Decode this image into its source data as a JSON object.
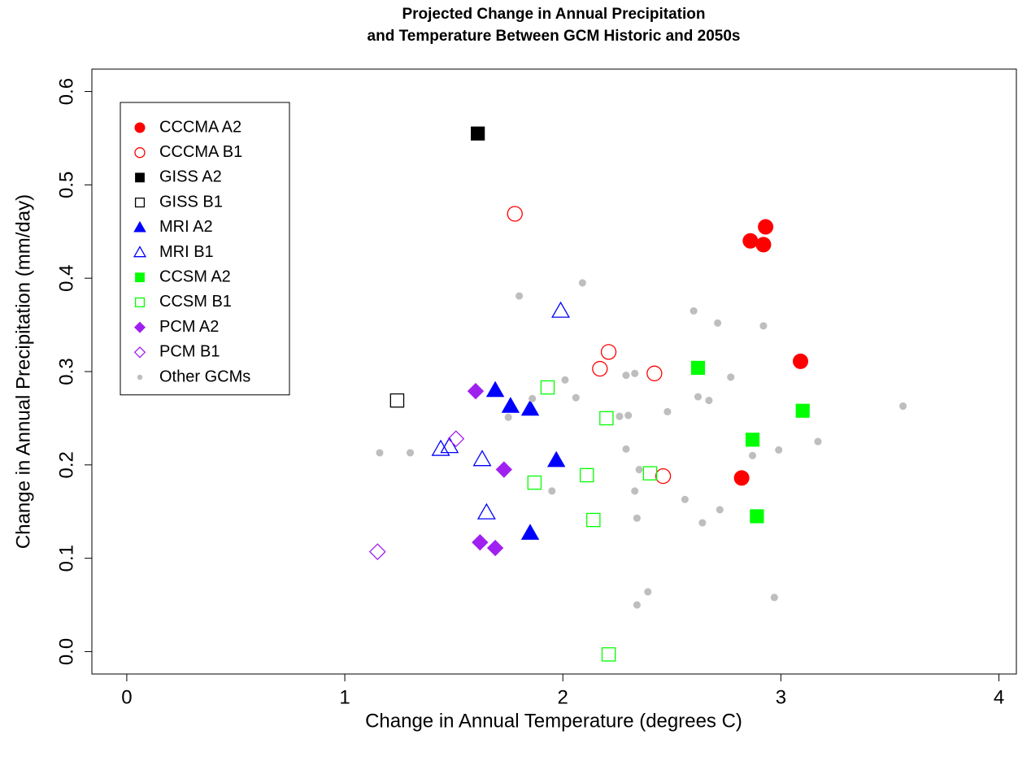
{
  "chart_data": {
    "type": "scatter",
    "title": [
      "Projected Change in Annual Precipitation",
      "and Temperature Between GCM Historic and 2050s"
    ],
    "x_label": "Change in Annual Temperature (degrees C)",
    "y_label": "Change in Annual Precipitation (mm/day)",
    "xlim": [
      -0.16,
      4.08
    ],
    "ylim": [
      -0.024,
      0.624
    ],
    "xticks": [
      0,
      1,
      2,
      3,
      4
    ],
    "yticks": [
      {
        "value": 0,
        "label": "0.0"
      },
      0.1,
      0.2,
      0.3,
      0.4,
      0.5,
      0.6
    ],
    "legend": "top-left",
    "series": [
      {
        "name": "CCCMA A2",
        "color": "#ff0000",
        "marker": "circle",
        "filled": true,
        "x": [
          2.86,
          2.93,
          2.92,
          3.09,
          2.82
        ],
        "values": [
          0.44,
          0.455,
          0.436,
          0.311,
          0.186
        ]
      },
      {
        "name": "CCCMA B1",
        "color": "#ff0000",
        "marker": "circle",
        "filled": false,
        "x": [
          1.78,
          2.21,
          2.17,
          2.42,
          2.46
        ],
        "values": [
          0.469,
          0.321,
          0.303,
          0.298,
          0.188
        ]
      },
      {
        "name": "GISS A2",
        "color": "#000000",
        "marker": "square",
        "filled": true,
        "x": [
          1.61
        ],
        "values": [
          0.555
        ]
      },
      {
        "name": "GISS B1",
        "color": "#000000",
        "marker": "square",
        "filled": false,
        "x": [
          1.24
        ],
        "values": [
          0.269
        ]
      },
      {
        "name": "MRI A2",
        "color": "#0000ff",
        "marker": "triangle",
        "filled": true,
        "x": [
          1.69,
          1.76,
          1.85,
          1.97,
          1.85
        ],
        "values": [
          0.28,
          0.263,
          0.26,
          0.205,
          0.127
        ]
      },
      {
        "name": "MRI B1",
        "color": "#0000ff",
        "marker": "triangle",
        "filled": false,
        "x": [
          1.99,
          1.44,
          1.48,
          1.63,
          1.65
        ],
        "values": [
          0.365,
          0.217,
          0.22,
          0.206,
          0.149
        ]
      },
      {
        "name": "CCSM A2",
        "color": "#00ff00",
        "marker": "square",
        "filled": true,
        "x": [
          2.62,
          3.1,
          2.87,
          2.89
        ],
        "values": [
          0.304,
          0.258,
          0.227,
          0.145
        ]
      },
      {
        "name": "CCSM B1",
        "color": "#00ff00",
        "marker": "square",
        "filled": false,
        "x": [
          1.93,
          2.2,
          2.11,
          2.4,
          1.87,
          2.14,
          2.21
        ],
        "values": [
          0.283,
          0.25,
          0.189,
          0.191,
          0.181,
          0.141,
          -0.003
        ]
      },
      {
        "name": "PCM A2",
        "color": "#a020f0",
        "marker": "diamond",
        "filled": true,
        "x": [
          1.6,
          1.73,
          1.62,
          1.69
        ],
        "values": [
          0.279,
          0.195,
          0.117,
          0.111
        ]
      },
      {
        "name": "PCM B1",
        "color": "#a020f0",
        "marker": "diamond",
        "filled": false,
        "x": [
          1.51,
          1.15
        ],
        "values": [
          0.228,
          0.107
        ]
      },
      {
        "name": "Other GCMs",
        "color": "#bebebe",
        "marker": "dot",
        "filled": true,
        "x": [
          1.16,
          1.3,
          1.8,
          2.09,
          2.6,
          2.71,
          2.92,
          2.01,
          2.06,
          1.86,
          1.75,
          2.33,
          2.29,
          2.62,
          2.67,
          2.77,
          2.48,
          2.26,
          2.3,
          2.29,
          2.35,
          2.99,
          3.17,
          3.56,
          2.87,
          2.56,
          2.33,
          1.95,
          2.34,
          2.72,
          2.64,
          2.39,
          2.34,
          2.97
        ],
        "values": [
          0.213,
          0.213,
          0.381,
          0.395,
          0.365,
          0.352,
          0.349,
          0.291,
          0.272,
          0.271,
          0.251,
          0.298,
          0.296,
          0.273,
          0.269,
          0.294,
          0.257,
          0.252,
          0.253,
          0.217,
          0.195,
          0.216,
          0.225,
          0.263,
          0.21,
          0.163,
          0.172,
          0.172,
          0.143,
          0.152,
          0.138,
          0.064,
          0.05,
          0.058
        ]
      }
    ]
  }
}
